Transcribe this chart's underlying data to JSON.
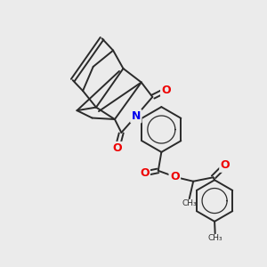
{
  "bg_color": "#ebebeb",
  "bond_color": "#2a2a2a",
  "N_color": "#0000ee",
  "O_color": "#ee0000",
  "lw": 1.4,
  "fig_size": [
    3.0,
    3.0
  ],
  "dpi": 100,
  "xlim": [
    0,
    10
  ],
  "ylim": [
    0,
    10
  ]
}
